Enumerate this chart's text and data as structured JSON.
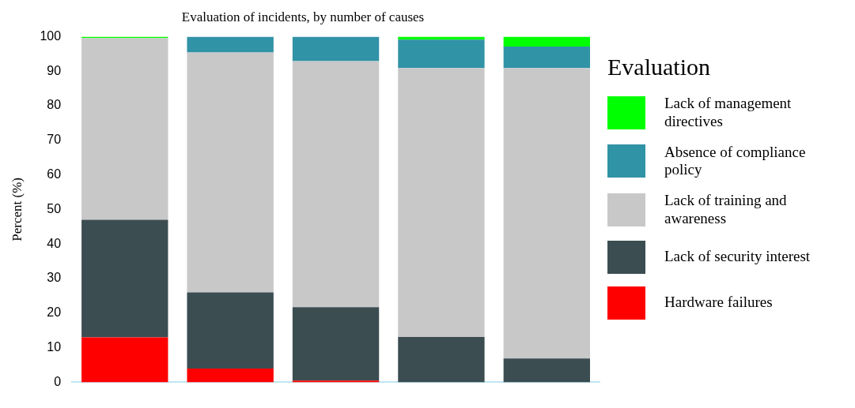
{
  "chart_data": {
    "type": "bar",
    "title": "Evaluation of incidents, by number of causes",
    "ylabel": "Percent (%)",
    "legend_title": "Evaluation",
    "categories": [
      null,
      null,
      null,
      null,
      null
    ],
    "stacked": true,
    "ylim": [
      0,
      100
    ],
    "yticks": [
      0,
      10,
      20,
      30,
      40,
      50,
      60,
      70,
      80,
      90,
      100
    ],
    "grid": false,
    "legend": "right",
    "series": [
      {
        "name": "Hardware failures",
        "color": "#ff0000",
        "values": [
          13,
          4,
          0.5,
          null,
          null
        ]
      },
      {
        "name": "Lack of security interest",
        "color": "#3b4d51",
        "values": [
          34,
          22,
          21.2,
          13.1,
          6.9
        ]
      },
      {
        "name": "Lack of training and awareness",
        "color": "#c8c8c8",
        "values": [
          52.6,
          69.4,
          71.2,
          77.8,
          84
        ]
      },
      {
        "name": "Absence of compliance policy",
        "color": "#3193a6",
        "values": [
          null,
          4.6,
          7.1,
          8.2,
          6.2
        ]
      },
      {
        "name": "Lack of management directives",
        "color": "#00ff00",
        "values": [
          0.4,
          null,
          null,
          0.9,
          2.9
        ]
      }
    ]
  }
}
